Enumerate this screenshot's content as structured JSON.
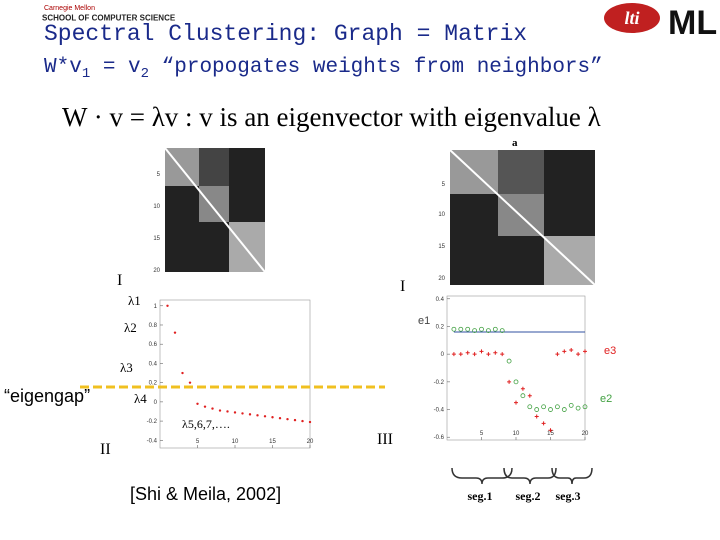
{
  "header": {
    "logo_left_top": "Carnegie Mellon",
    "logo_left": "SCHOOL OF COMPUTER SCIENCE",
    "logo_mid": "lti",
    "logo_right": "ML",
    "title": "Spectral Clustering: Graph = Matrix",
    "subtitle_parts": [
      "W*v",
      "1",
      " = v",
      "2",
      " “propogates weights from neighbors”"
    ]
  },
  "equation": "W · v = λv : v is an eigenvector with eigenvalue λ",
  "figure_labels": [
    "I",
    "I",
    "II",
    "III",
    "a"
  ],
  "heatmap_ticks": [
    "5",
    "10",
    "15",
    "20"
  ],
  "lambda_labels": [
    "λ1",
    "λ2",
    "λ3",
    "λ4",
    "λ5,6,7,…."
  ],
  "eigengap": "“eigengap”",
  "citation": "[Shi & Meila, 2002]",
  "segments": [
    "seg.1",
    "seg.2",
    "seg.3"
  ],
  "chart_data": [
    {
      "type": "scatter",
      "xlim": [
        0,
        20
      ],
      "ylim": [
        -0.48,
        1.06
      ],
      "xticks": [
        5,
        10,
        15,
        20
      ],
      "yticks": [
        1,
        0.8,
        0.6,
        0.4,
        0.2,
        0,
        -0.2,
        -0.4
      ],
      "x": [
        1,
        2,
        3,
        4,
        5,
        6,
        7,
        8,
        9,
        10,
        11,
        12,
        13,
        14,
        15,
        16,
        17,
        18,
        19,
        20
      ],
      "series": [
        {
          "name": "λ",
          "color": "#e02020",
          "marker": "dot",
          "values": [
            1,
            0.72,
            0.3,
            0.2,
            -0.02,
            -0.05,
            -0.07,
            -0.09,
            -0.1,
            -0.11,
            -0.12,
            -0.13,
            -0.14,
            -0.15,
            -0.16,
            -0.17,
            -0.18,
            -0.19,
            -0.2,
            -0.21
          ]
        }
      ]
    },
    {
      "type": "scatter",
      "xlim": [
        0,
        20
      ],
      "ylim": [
        -0.62,
        0.42
      ],
      "xticks": [
        5,
        10,
        15,
        20
      ],
      "yticks": [
        0.4,
        0.2,
        0,
        -0.2,
        -0.4,
        -0.6
      ],
      "x": [
        1,
        2,
        3,
        4,
        5,
        6,
        7,
        8,
        9,
        10,
        11,
        12,
        13,
        14,
        15,
        16,
        17,
        18,
        19,
        20
      ],
      "series": [
        {
          "name": "e1",
          "color": "#3050a0",
          "marker": "line",
          "values": [
            0.16,
            0.16,
            0.16,
            0.16,
            0.16,
            0.16,
            0.16,
            0.16,
            0.16,
            0.16,
            0.16,
            0.16,
            0.16,
            0.16,
            0.16,
            0.16,
            0.16,
            0.16,
            0.16,
            0.16
          ]
        },
        {
          "name": "e3",
          "color": "#e02020",
          "marker": "plus",
          "values": [
            0,
            0,
            0.01,
            0,
            0.02,
            0,
            0.01,
            0,
            -0.2,
            -0.35,
            -0.25,
            -0.3,
            -0.45,
            -0.5,
            -0.55,
            0,
            0.02,
            0.03,
            0,
            0.02
          ]
        },
        {
          "name": "e2",
          "color": "#40a040",
          "marker": "circle",
          "values": [
            0.18,
            0.18,
            0.18,
            0.17,
            0.18,
            0.17,
            0.18,
            0.17,
            -0.05,
            -0.2,
            -0.3,
            -0.38,
            -0.4,
            -0.38,
            -0.4,
            -0.38,
            -0.4,
            -0.37,
            -0.39,
            -0.38
          ]
        }
      ]
    }
  ]
}
